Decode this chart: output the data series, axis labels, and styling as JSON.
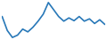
{
  "x": [
    0,
    1,
    2,
    3,
    4,
    5,
    6,
    7,
    8,
    9,
    10,
    11,
    12,
    13,
    14,
    15,
    16,
    17,
    18,
    19,
    20
  ],
  "y": [
    6.5,
    3.5,
    2.0,
    2.5,
    3.8,
    3.2,
    4.2,
    5.5,
    7.0,
    9.5,
    8.0,
    6.5,
    5.5,
    6.2,
    5.6,
    6.5,
    5.5,
    6.0,
    5.0,
    5.8,
    4.8
  ],
  "line_color": "#2878b8",
  "background_color": "#ffffff",
  "linewidth": 1.2
}
